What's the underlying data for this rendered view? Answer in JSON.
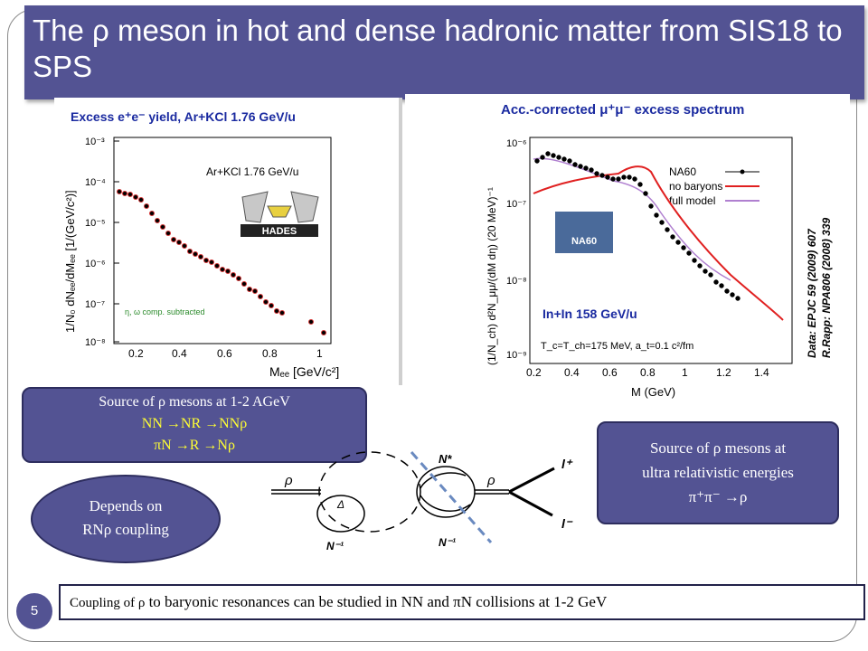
{
  "slide": {
    "title": "The ρ meson in hot and dense hadronic matter from SIS18 to SPS",
    "page_number": "5",
    "colors": {
      "accent": "#535393",
      "highlight": "#ffff33",
      "red_curve": "#e02020",
      "purple_curve": "#b080d0"
    }
  },
  "plot_left": {
    "title": "Excess e⁺e⁻ yield, Ar+KCl 1.76 GeV/u",
    "legend": "Ar+KCl 1.76 GeV/u",
    "ylabel": "1/N₀ dNₑₑ/dMₑₑ [1/(GeV/c²)]",
    "xlabel": "Mₑₑ [GeV/c²]",
    "note": "η, ω comp. subtracted",
    "logo_text": "HADES",
    "x_ticks": [
      "0.2",
      "0.4",
      "0.6",
      "0.8",
      "1"
    ],
    "y_ticks": [
      "10⁻³",
      "10⁻⁴",
      "10⁻⁵",
      "10⁻⁶",
      "10⁻⁷",
      "10⁻⁸"
    ]
  },
  "plot_right": {
    "title": "Acc.-corrected μ⁺μ⁻ excess spectrum",
    "legend": [
      {
        "label": "NA60"
      },
      {
        "label": "no baryons"
      },
      {
        "label": "full model"
      }
    ],
    "ylabel": "(1/N_ch) d²N_μμ/(dM dη) (20 MeV)⁻¹",
    "xlabel": "M (GeV)",
    "collision": "In+In 158 GeV/u",
    "params": "T_c=T_ch=175 MeV, a_t=0.1 c²/fm",
    "reference1": "Data: EPJC 59 (2009) 607",
    "reference2": "R.Rapp: NPA806 (2008) 339",
    "logo_text": "NA60",
    "x_ticks": [
      "0.2",
      "0.4",
      "0.6",
      "0.8",
      "1",
      "1.2",
      "1.4"
    ],
    "y_ticks": [
      "10⁻⁶",
      "10⁻⁷",
      "10⁻⁸",
      "10⁻⁹"
    ]
  },
  "callout_left": {
    "line1": "Source of ρ mesons at 1-2 AGeV",
    "line2": "NN →NR →NNρ",
    "line3": "πN →R →Nρ"
  },
  "callout_right": {
    "line1": "Source of ρ mesons at",
    "line2": "ultra relativistic energies",
    "line3": "π⁺π⁻ →ρ"
  },
  "ellipse": {
    "line1": "Depends on",
    "line2": "RNρ coupling"
  },
  "diagram": {
    "rho_left": "ρ",
    "delta": "Δ",
    "n_inv_left": "N⁻¹",
    "n_star": "N*",
    "rho_right": "ρ",
    "n_inv_right": "N⁻¹",
    "l_plus": "l⁺",
    "l_minus": "l⁻"
  },
  "footer": {
    "prefix": "Coupling of ρ",
    "text": " to baryonic resonances can be studied in NN  and πN collisions at 1-2 GeV"
  }
}
